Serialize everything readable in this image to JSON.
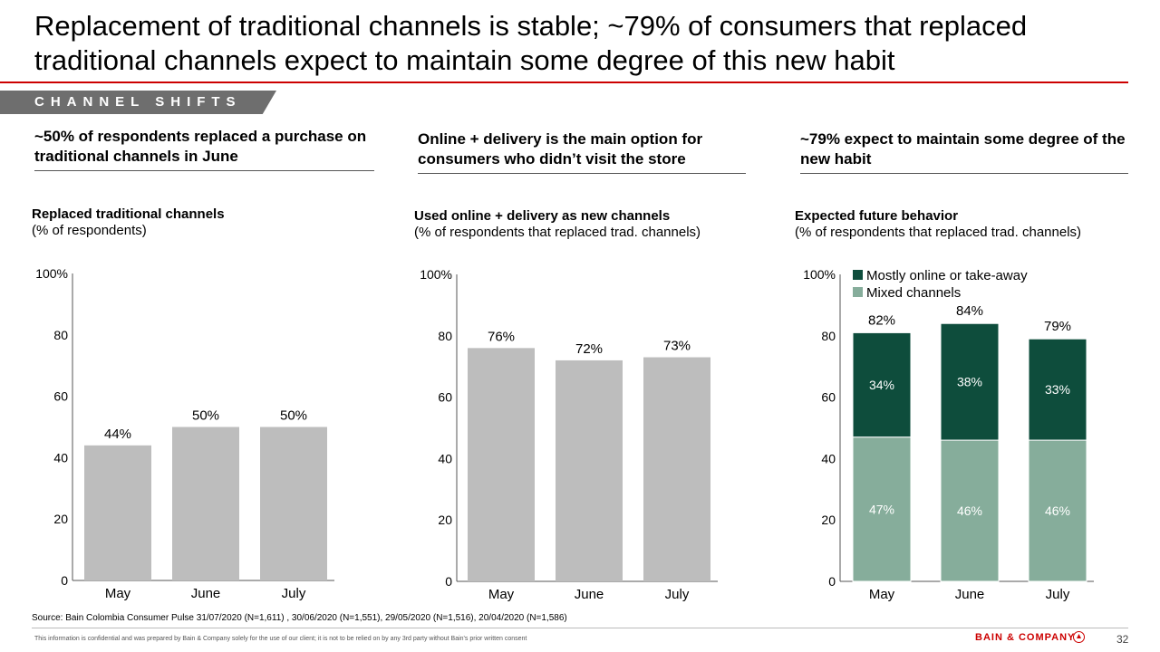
{
  "title": "Replacement of traditional channels is stable; ~79% of consumers that replaced traditional channels expect to maintain some degree of this new habit",
  "tag": "CHANNEL SHIFTS",
  "columns": [
    {
      "heading": "~50% of respondents replaced a purchase on traditional channels in June",
      "chart_title": "Replaced traditional channels",
      "chart_subtitle": "(% of respondents)"
    },
    {
      "heading": "Online + delivery is the main option for consumers who didn’t visit the store",
      "chart_title": "Used online + delivery as new channels",
      "chart_subtitle": "(% of respondents that replaced trad. channels)"
    },
    {
      "heading": "~79% expect to maintain some degree of the new habit",
      "chart_title": "Expected future behavior",
      "chart_subtitle": "(% of respondents that replaced trad. channels)"
    }
  ],
  "colors": {
    "bar_gray": "#bdbdbd",
    "dark_green": "#0e4d3c",
    "light_green": "#86ad9b",
    "accent_red": "#cc0000"
  },
  "chart_data": [
    {
      "type": "bar",
      "title": "Replaced traditional channels",
      "subtitle": "(% of respondents)",
      "categories": [
        "May",
        "June",
        "July"
      ],
      "values": [
        44,
        50,
        50
      ],
      "labels": [
        "44%",
        "50%",
        "50%"
      ],
      "yticks": [
        "100%",
        "80",
        "60",
        "40",
        "20",
        "0"
      ],
      "ylim": [
        0,
        100
      ]
    },
    {
      "type": "bar",
      "title": "Used online + delivery as new channels",
      "subtitle": "(% of respondents that replaced trad. channels)",
      "categories": [
        "May",
        "June",
        "July"
      ],
      "values": [
        76,
        72,
        73
      ],
      "labels": [
        "76%",
        "72%",
        "73%"
      ],
      "yticks": [
        "100%",
        "80",
        "60",
        "40",
        "20",
        "0"
      ],
      "ylim": [
        0,
        100
      ]
    },
    {
      "type": "bar",
      "stacked": true,
      "title": "Expected future behavior",
      "subtitle": "(% of respondents that replaced trad. channels)",
      "categories": [
        "May",
        "June",
        "July"
      ],
      "series": [
        {
          "name": "Mixed channels",
          "values": [
            47,
            46,
            46
          ],
          "labels": [
            "47%",
            "46%",
            "46%"
          ]
        },
        {
          "name": "Mostly online or take-away",
          "values": [
            34,
            38,
            33
          ],
          "labels": [
            "34%",
            "38%",
            "33%"
          ]
        }
      ],
      "totals": [
        "82%",
        "84%",
        "79%"
      ],
      "legend": [
        "Mostly online or take-away",
        "Mixed channels"
      ],
      "legend_position": "top",
      "yticks": [
        "100%",
        "80",
        "60",
        "40",
        "20",
        "0"
      ],
      "ylim": [
        0,
        100
      ]
    }
  ],
  "source": "Source: Bain Colombia Consumer Pulse 31/07/2020 (N=1,611) , 30/06/2020 (N=1,551), 29/05/2020 (N=1,516), 20/04/2020 (N=1,586)",
  "confidential": "This information is confidential and was prepared by Bain & Company solely for the use of our client; it is not to be relied on by any 3rd party without Bain's prior written consent",
  "logo": "BAIN & COMPANY",
  "page_number": "32"
}
